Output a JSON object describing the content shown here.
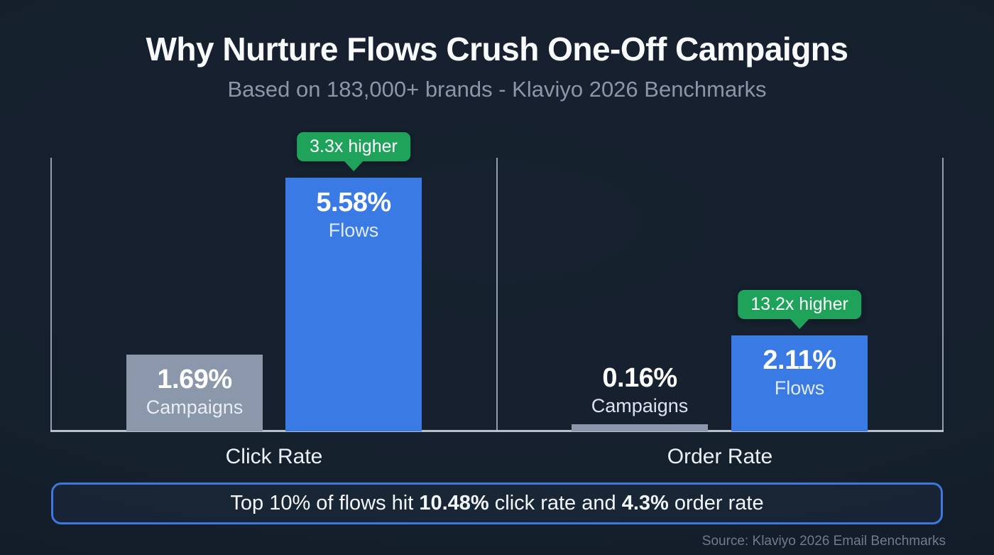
{
  "header": {
    "title": "Why Nurture Flows Crush One-Off Campaigns",
    "subtitle": "Based on 183,000+ brands - Klaviyo 2026 Benchmarks"
  },
  "chart_data": {
    "type": "bar",
    "title": "Why Nurture Flows Crush One-Off Campaigns",
    "subtitle": "Based on 183,000+ brands - Klaviyo 2026 Benchmarks",
    "categories": [
      "Click Rate",
      "Order Rate"
    ],
    "series": [
      {
        "name": "Campaigns",
        "values": [
          1.69,
          0.16
        ],
        "color": "#8b97aa"
      },
      {
        "name": "Flows",
        "values": [
          5.58,
          2.11
        ],
        "color": "#3a7ae4"
      }
    ],
    "unit": "%",
    "ylim": [
      0,
      6.1
    ],
    "grid": false,
    "legend": "labels-inside-bars",
    "annotations": [
      {
        "category": "Click Rate",
        "text": "3.3x higher",
        "color": "#1fa35a"
      },
      {
        "category": "Order Rate",
        "text": "13.2x higher",
        "color": "#1fa35a"
      }
    ]
  },
  "bars": {
    "click_campaigns": {
      "value_label": "1.69%",
      "series_label": "Campaigns"
    },
    "click_flows": {
      "value_label": "5.58%",
      "series_label": "Flows"
    },
    "order_campaigns": {
      "value_label": "0.16%",
      "series_label": "Campaigns"
    },
    "order_flows": {
      "value_label": "2.11%",
      "series_label": "Flows"
    }
  },
  "badges": {
    "click": "3.3x higher",
    "order": "13.2x higher"
  },
  "callout": {
    "prefix": "Top 10% of flows hit ",
    "stat1": "10.48%",
    "mid": " click rate and ",
    "stat2": "4.3%",
    "suffix": " order rate"
  },
  "source": "Source: Klaviyo 2026 Email Benchmarks",
  "colors": {
    "background": "#15202d",
    "flows_bar": "#3a7ae4",
    "campaigns_bar": "#8b97aa",
    "badge_green": "#1fa35a",
    "callout_border": "#3d77df"
  }
}
